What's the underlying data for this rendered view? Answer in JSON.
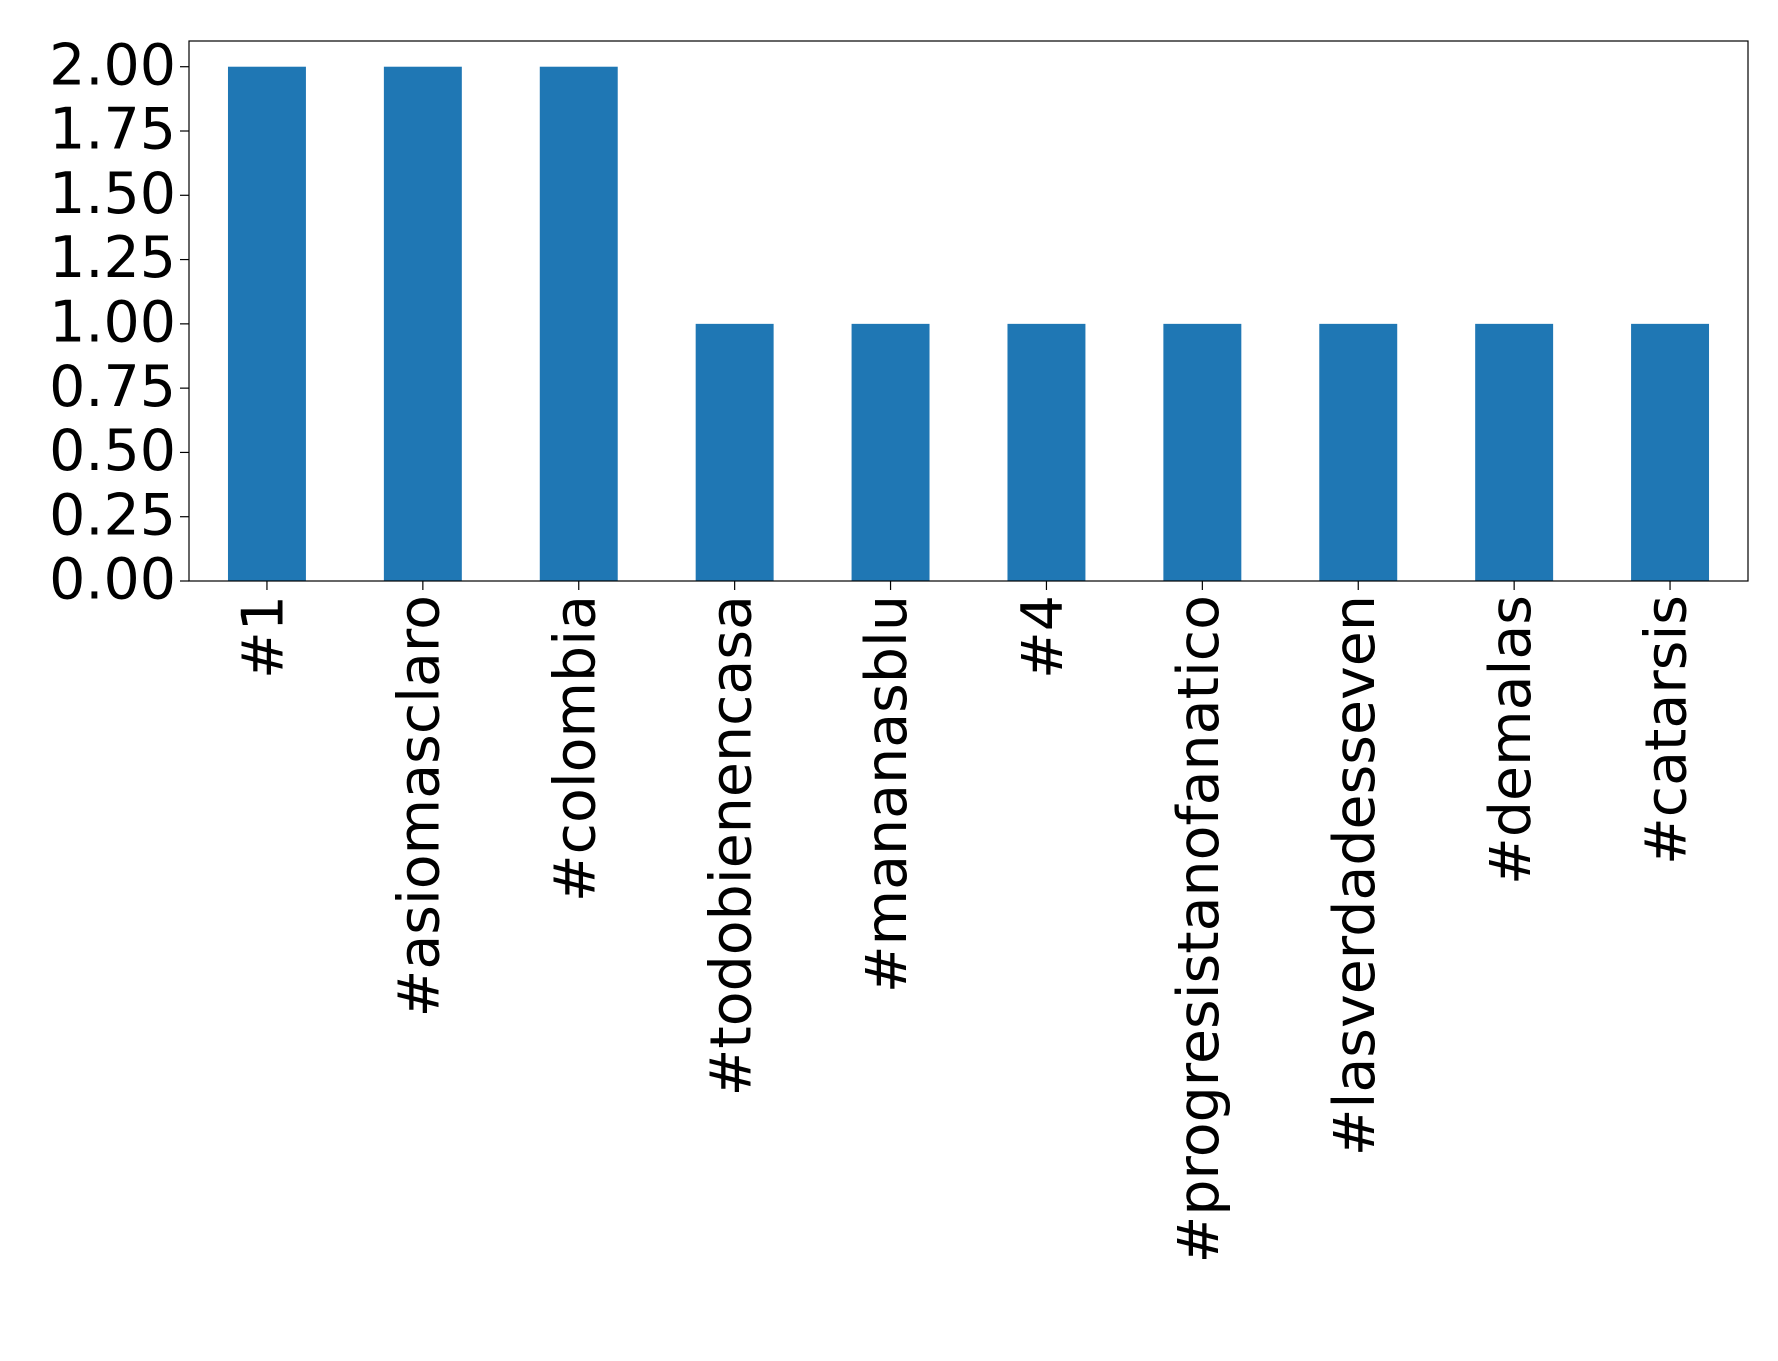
{
  "chart_data": {
    "type": "bar",
    "categories": [
      "#1",
      "#asiomasclaro",
      "#colombia",
      "#todobienencasa",
      "#mananasblu",
      "#4",
      "#progresistanofanatico",
      "#lasverdadesseven",
      "#demalas",
      "#catarsis"
    ],
    "values": [
      2,
      2,
      2,
      1,
      1,
      1,
      1,
      1,
      1,
      1
    ],
    "color": "#1f77b4",
    "ylim": [
      0,
      2.1
    ],
    "yticks": [
      {
        "value": 0,
        "label": "0.00"
      },
      {
        "value": 0.25,
        "label": "0.25"
      },
      {
        "value": 0.5,
        "label": "0.50"
      },
      {
        "value": 0.75,
        "label": "0.75"
      },
      {
        "value": 1,
        "label": "1.00"
      },
      {
        "value": 1.25,
        "label": "1.25"
      },
      {
        "value": 1.5,
        "label": "1.50"
      },
      {
        "value": 1.75,
        "label": "1.75"
      },
      {
        "value": 2,
        "label": "2.00"
      }
    ],
    "grid": false
  }
}
